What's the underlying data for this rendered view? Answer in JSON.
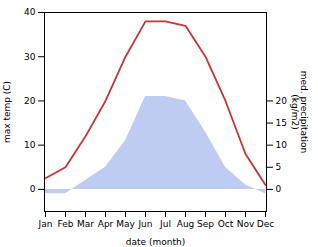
{
  "chart_data": {
    "type": "line",
    "categories": [
      "Jan",
      "Feb",
      "Mar",
      "Apr",
      "May",
      "Jun",
      "Jul",
      "Aug",
      "Sep",
      "Oct",
      "Nov",
      "Dec"
    ],
    "series": [
      {
        "type": "area",
        "axis": "y2",
        "color": "#aabbee",
        "values": [
          -1,
          -1,
          2,
          5,
          11,
          21,
          21,
          20,
          13,
          5,
          1,
          -1
        ]
      },
      {
        "type": "line",
        "color": "#cc3333",
        "values": [
          2.5,
          5,
          12,
          20,
          30,
          38,
          38,
          37,
          30,
          20,
          8,
          1
        ]
      }
    ],
    "xlabel": "date (month)",
    "ylabel": "max temp (C)",
    "y2label": "med. precipitation\n(kg/m2)",
    "ylim": [
      -5,
      40
    ],
    "yticks": [
      0,
      10,
      20,
      30,
      40
    ],
    "y2lim": [
      -5,
      40
    ],
    "y2ticks": [
      0,
      5,
      10,
      15,
      20
    ],
    "grid": false
  }
}
